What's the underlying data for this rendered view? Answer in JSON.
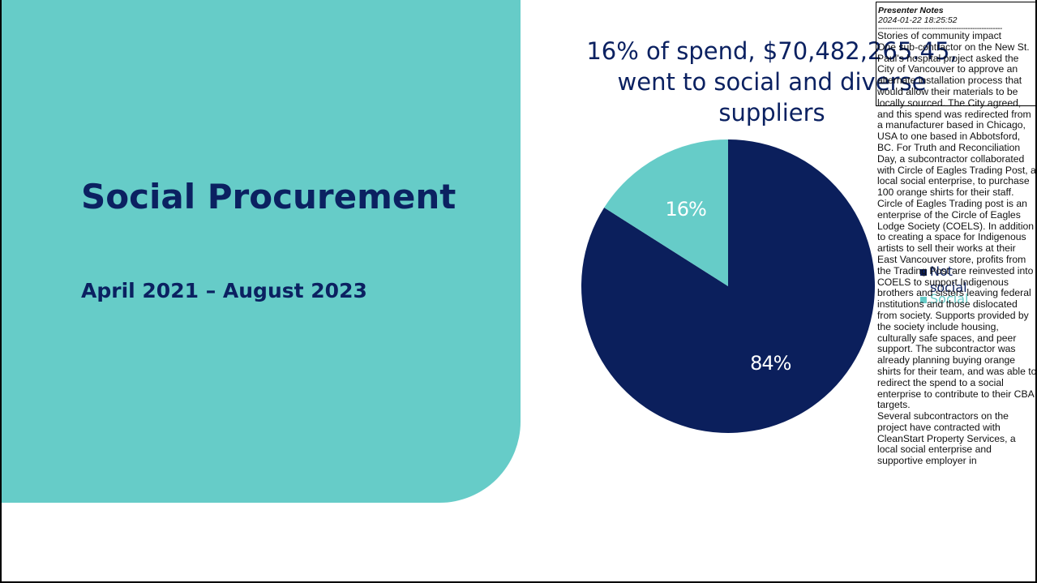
{
  "slide": {
    "title": "Social Procurement",
    "subtitle": "April 2021 – August 2023",
    "panel_color": "#66ccc8",
    "text_color": "#0b2161"
  },
  "chart_data": {
    "type": "pie",
    "title": "16% of spend, $70,482,265.45, went to social and diverse suppliers",
    "slices": [
      {
        "name": "Not social",
        "value": 84,
        "label": "84%",
        "color": "#0b1f5c"
      },
      {
        "name": "Social",
        "value": 16,
        "label": "16%",
        "color": "#66ccc8"
      }
    ],
    "legend": {
      "placement": "right",
      "entries": [
        "Not social",
        "Social"
      ]
    }
  },
  "presenter_notes": {
    "title": "Presenter Notes",
    "timestamp": "2024-01-22 18:25:52",
    "separator": "------------------------------------------------------",
    "body": "Stories of community impact\nOne sub-contractor on the New St. Paul's hospital project asked the City of Vancouver to approve an alternate installation process that would allow their materials to be locally sourced. The City agreed, and this spend was redirected from a manufacturer based in Chicago, USA to one based in Abbotsford, BC. For Truth and Reconciliation Day, a subcontractor collaborated with Circle of Eagles Trading Post, a local social enterprise, to purchase 100 orange shirts for their staff.\nCircle of Eagles Trading post is an enterprise of the Circle of Eagles Lodge Society (COELS). In addition to creating a space for Indigenous artists to sell their works at their East Vancouver store, profits from the Trading Post are reinvested into COELS to support Indigenous brothers and sisters leaving federal institutions and those dislocated from society. Supports provided by the society include housing, culturally safe spaces, and peer support. The subcontractor was already planning buying orange shirts for their team, and was able to redirect the spend to a social enterprise to contribute to their CBA targets.\nSeveral subcontractors on the project have contracted with CleanStart Property Services, a local social enterprise and supportive employer in"
  }
}
